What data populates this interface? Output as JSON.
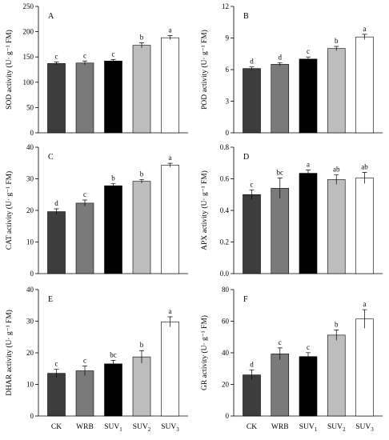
{
  "chart_data": [
    {
      "type": "bar",
      "panel": "A",
      "ylabel": "SOD activity (U· g⁻¹ FM)",
      "ylim": [
        0,
        250
      ],
      "yticks": [
        0,
        50,
        100,
        150,
        200,
        250
      ],
      "categories": [
        "CK",
        "WRB",
        "SUV1",
        "SUV2",
        "SUV3"
      ],
      "values": [
        137,
        138,
        142,
        173,
        188
      ],
      "errors": [
        3,
        4,
        3,
        5,
        4
      ],
      "significance": [
        "c",
        "c",
        "c",
        "b",
        "a"
      ]
    },
    {
      "type": "bar",
      "panel": "B",
      "ylabel": "POD activity (U· g⁻¹ FM)",
      "ylim": [
        0,
        12
      ],
      "yticks": [
        0,
        3,
        6,
        9,
        12
      ],
      "categories": [
        "CK",
        "WRB",
        "SUV1",
        "SUV2",
        "SUV3"
      ],
      "values": [
        6.1,
        6.5,
        7.0,
        8.0,
        9.1
      ],
      "errors": [
        0.15,
        0.15,
        0.2,
        0.2,
        0.25
      ],
      "significance": [
        "d",
        "d",
        "c",
        "b",
        "a"
      ]
    },
    {
      "type": "bar",
      "panel": "C",
      "ylabel": "CAT activity (U· g⁻¹ FM)",
      "ylim": [
        0,
        40
      ],
      "yticks": [
        0,
        10,
        20,
        30,
        40
      ],
      "categories": [
        "CK",
        "WRB",
        "SUV1",
        "SUV2",
        "SUV3"
      ],
      "values": [
        19.6,
        22.3,
        27.8,
        29.2,
        34.3
      ],
      "errors": [
        0.9,
        1.0,
        0.7,
        0.6,
        0.6
      ],
      "significance": [
        "d",
        "c",
        "b",
        "b",
        "a"
      ]
    },
    {
      "type": "bar",
      "panel": "D",
      "ylabel": "APX activity (U· g⁻¹ FM)",
      "ylim": [
        0,
        0.8
      ],
      "yticks": [
        "0.0",
        "0.2",
        "0.4",
        "0.6",
        "0.8"
      ],
      "categories": [
        "CK",
        "WRB",
        "SUV1",
        "SUV2",
        "SUV3"
      ],
      "values": [
        0.5,
        0.54,
        0.635,
        0.595,
        0.605
      ],
      "errors": [
        0.03,
        0.065,
        0.02,
        0.03,
        0.035
      ],
      "significance": [
        "c",
        "bc",
        "a",
        "ab",
        "ab"
      ]
    },
    {
      "type": "bar",
      "panel": "E",
      "ylabel": "DHAR activity (U· g⁻¹ FM)",
      "ylim": [
        0,
        40
      ],
      "yticks": [
        0,
        10,
        20,
        30,
        40
      ],
      "categories": [
        "CK",
        "WRB",
        "SUV1",
        "SUV2",
        "SUV3"
      ],
      "values": [
        13.5,
        14.3,
        16.5,
        18.7,
        29.8
      ],
      "errors": [
        1.3,
        1.5,
        1.1,
        2.0,
        1.6
      ],
      "significance": [
        "c",
        "c",
        "bc",
        "b",
        "a"
      ]
    },
    {
      "type": "bar",
      "panel": "F",
      "ylabel": "GR activity (U· g⁻¹ FM)",
      "ylim": [
        0,
        80
      ],
      "yticks": [
        0,
        20,
        40,
        60,
        80
      ],
      "categories": [
        "CK",
        "WRB",
        "SUV1",
        "SUV2",
        "SUV3"
      ],
      "values": [
        26,
        39.3,
        37.6,
        51.2,
        61.4
      ],
      "errors": [
        3.2,
        3.8,
        2.5,
        3.3,
        5.9
      ],
      "significance": [
        "d",
        "c",
        "c",
        "b",
        "a"
      ]
    }
  ],
  "x_tick_labels": [
    {
      "base": "CK",
      "sub": ""
    },
    {
      "base": "WRB",
      "sub": ""
    },
    {
      "base": "SUV",
      "sub": "1"
    },
    {
      "base": "SUV",
      "sub": "2"
    },
    {
      "base": "SUV",
      "sub": "3"
    }
  ],
  "bar_colors": [
    "#3d3d3d",
    "#7a7a7a",
    "#000000",
    "#bdbdbd",
    "#ffffff"
  ]
}
